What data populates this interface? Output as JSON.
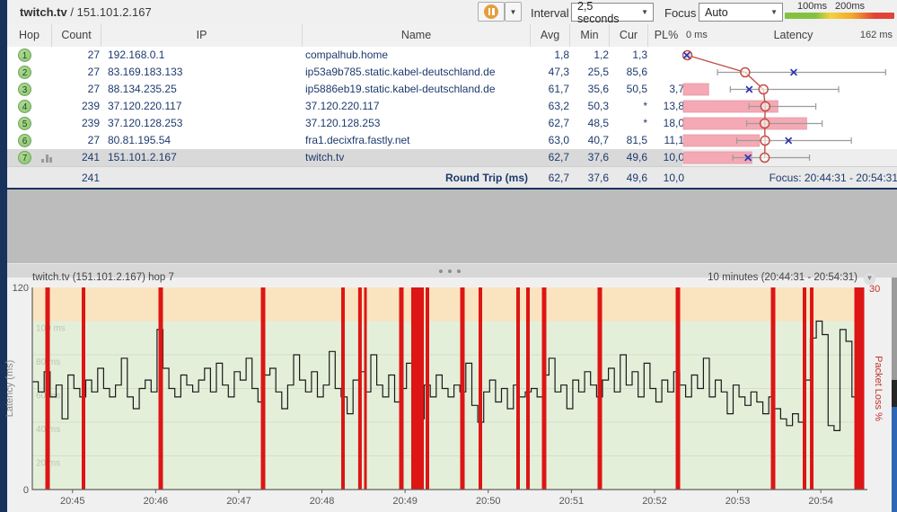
{
  "window": {
    "host": "twitch.tv",
    "separator": "/",
    "ip": "151.101.2.167"
  },
  "toolbar": {
    "pause_tooltip": "pause",
    "interval_label": "Interval",
    "interval_value": "2,5 seconds",
    "focus_label": "Focus",
    "focus_value": "Auto",
    "legend_100": "100ms",
    "legend_200": "200ms",
    "legend_colors": [
      "#84c141",
      "#f4d23c",
      "#f0a82c",
      "#e04438"
    ]
  },
  "table": {
    "headers": {
      "hop": "Hop",
      "count": "Count",
      "ip": "IP",
      "name": "Name",
      "avg": "Avg",
      "min": "Min",
      "cur": "Cur",
      "pl": "PL%",
      "latency_min": "0 ms",
      "latency": "Latency",
      "latency_max": "162 ms"
    },
    "rows": [
      {
        "hop": "1",
        "count": "27",
        "ip": "192.168.0.1",
        "name": "compalhub.home",
        "avg": "1,8",
        "min": "1,2",
        "cur": "1,3",
        "pl": "",
        "selected": false,
        "graph": {
          "avg": 1.8,
          "min": 1.2,
          "cur": 1.3,
          "max": 4,
          "pl": 0
        }
      },
      {
        "hop": "2",
        "count": "27",
        "ip": "83.169.183.133",
        "name": "ip53a9b785.static.kabel-deutschland.de",
        "avg": "47,3",
        "min": "25,5",
        "cur": "85,6",
        "pl": "",
        "selected": false,
        "graph": {
          "avg": 47.3,
          "min": 25.5,
          "cur": 85.6,
          "max": 158,
          "pl": 0
        }
      },
      {
        "hop": "3",
        "count": "27",
        "ip": "88.134.235.25",
        "name": "ip5886eb19.static.kabel-deutschland.de",
        "avg": "61,7",
        "min": "35,6",
        "cur": "50,5",
        "pl": "3,7",
        "selected": false,
        "graph": {
          "avg": 61.7,
          "min": 35.6,
          "cur": 50.5,
          "max": 121,
          "pl": 3.7
        }
      },
      {
        "hop": "4",
        "count": "239",
        "ip": "37.120.220.117",
        "name": "37.120.220.117",
        "avg": "63,2",
        "min": "50,3",
        "cur": "*",
        "pl": "13,8",
        "selected": false,
        "graph": {
          "avg": 63.2,
          "min": 50.3,
          "cur": null,
          "max": 103,
          "pl": 13.8
        }
      },
      {
        "hop": "5",
        "count": "239",
        "ip": "37.120.128.253",
        "name": "37.120.128.253",
        "avg": "62,7",
        "min": "48,5",
        "cur": "*",
        "pl": "18,0",
        "selected": false,
        "graph": {
          "avg": 62.7,
          "min": 48.5,
          "cur": null,
          "max": 108,
          "pl": 18
        }
      },
      {
        "hop": "6",
        "count": "27",
        "ip": "80.81.195.54",
        "name": "fra1.decixfra.fastly.net",
        "avg": "63,0",
        "min": "40,7",
        "cur": "81,5",
        "pl": "11,1",
        "selected": false,
        "graph": {
          "avg": 63.0,
          "min": 40.7,
          "cur": 81.5,
          "max": 131,
          "pl": 11.1
        }
      },
      {
        "hop": "7",
        "count": "241",
        "ip": "151.101.2.167",
        "name": "twitch.tv",
        "avg": "62,7",
        "min": "37,6",
        "cur": "49,6",
        "pl": "10,0",
        "selected": true,
        "graph": {
          "avg": 62.7,
          "min": 37.6,
          "cur": 49.6,
          "max": 98,
          "pl": 10
        }
      }
    ],
    "summary": {
      "count": "241",
      "label": "Round Trip (ms)",
      "avg": "62,7",
      "min": "37,6",
      "cur": "49,6",
      "pl": "10,0",
      "focus": "Focus: 20:44:31 - 20:54:31"
    }
  },
  "upper_graph": {
    "scale_max_ms": 162,
    "pl_bar_full_percent": 30,
    "green_until_ms": 100,
    "colors": {
      "green_bg": "#e6f1dd",
      "amber_bg": "#fcedc9",
      "loss_bar": "#f5a9b4",
      "loss_bar_edge": "#e497a3",
      "avg_line": "#c05046",
      "current_marker": "#2d35b5",
      "range_whisker": "#9b9b9b"
    }
  },
  "chart_data": {
    "type": "line",
    "title": "twitch.tv (151.101.2.167) hop 7",
    "range_label": "10 minutes (20:44:31 - 20:54:31)",
    "ylabel": "Latency (ms)",
    "y2label": "Packet Loss %",
    "ylim": [
      0,
      120
    ],
    "y2lim": [
      0,
      30
    ],
    "y_tick_top": "120",
    "y_tick_bottom": "0",
    "y2_tick_top": "30",
    "inner_grid_lines_ms": [
      100,
      80,
      60,
      40,
      20
    ],
    "inner_grid_labels": [
      "100 ms",
      "80 ms",
      "60 ms",
      "40 ms",
      "20 ms"
    ],
    "x_tick_labels": [
      "20:45",
      "20:46",
      "20:47",
      "20:48",
      "20:49",
      "20:50",
      "20:51",
      "20:52",
      "20:53",
      "20:54"
    ],
    "x_start_offset_seconds": 29,
    "duration_seconds": 600,
    "zones": {
      "green_max_ms": 100
    },
    "latency_samples_ms": [
      64,
      58,
      70,
      55,
      62,
      42,
      68,
      60,
      55,
      65,
      58,
      72,
      60,
      55,
      62,
      78,
      55,
      48,
      60,
      65,
      58,
      95,
      72,
      60,
      55,
      68,
      62,
      58,
      65,
      72,
      58,
      75,
      62,
      55,
      70,
      65,
      78,
      60,
      52,
      68,
      72,
      58,
      48,
      62,
      80,
      65,
      58,
      70,
      55,
      62,
      82,
      60,
      55,
      45,
      65,
      70,
      58,
      80,
      62,
      55,
      68,
      52,
      60,
      75,
      58,
      42,
      62,
      55,
      68,
      60,
      55,
      62,
      58,
      75,
      50,
      40,
      58,
      65,
      52,
      60,
      48,
      62,
      55,
      58,
      60,
      55,
      68,
      78,
      58,
      62,
      48,
      65,
      58,
      70,
      62,
      55,
      65,
      72,
      58,
      80,
      62,
      70,
      55,
      75,
      60,
      52,
      65,
      58,
      70,
      62,
      55,
      68,
      60,
      78,
      55,
      65,
      58,
      45,
      62,
      55,
      50,
      58,
      52,
      45,
      55,
      48,
      42,
      38,
      45,
      40,
      65,
      90,
      100,
      92,
      38,
      35,
      95,
      88,
      55,
      58
    ],
    "loss_events": [
      [
        0.0184,
        5
      ],
      [
        0.0616,
        4
      ],
      [
        0.1544,
        5
      ],
      [
        0.2775,
        5
      ],
      [
        0.3736,
        4
      ],
      [
        0.3941,
        4
      ],
      [
        0.4006,
        3
      ],
      [
        0.4438,
        5
      ],
      [
        0.4633,
        14
      ],
      [
        0.4752,
        4
      ],
      [
        0.5173,
        5
      ],
      [
        0.5389,
        4
      ],
      [
        0.5842,
        4
      ],
      [
        0.5961,
        4
      ],
      [
        0.6156,
        5
      ],
      [
        0.6825,
        5
      ],
      [
        0.7765,
        5
      ],
      [
        0.8909,
        5
      ],
      [
        0.9287,
        4
      ],
      [
        0.9374,
        4
      ],
      [
        0.9946,
        11
      ]
    ],
    "colors": {
      "green": "#e4efda",
      "amber": "#fae4c0",
      "loss": "#dd1515",
      "line": "#1a1a1a",
      "axis": "#606060",
      "grid": "#cfe0c8",
      "grid_label": "#b7c8ae",
      "packet_loss_text": "#c13328",
      "tick_text": "#555555"
    }
  }
}
